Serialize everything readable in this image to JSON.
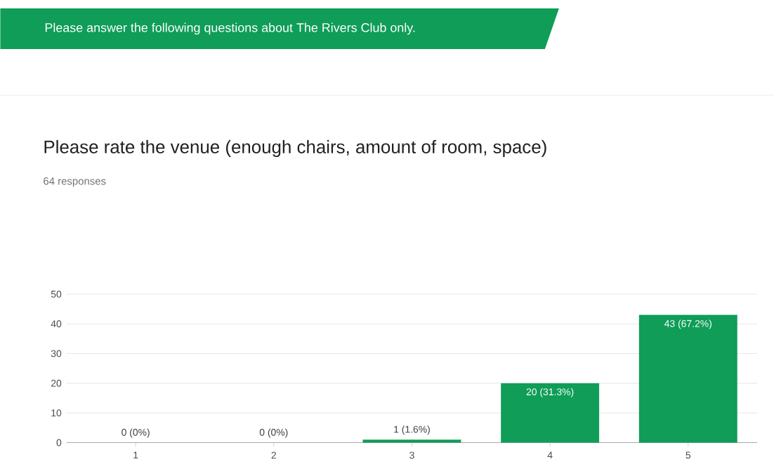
{
  "chart_data": {
    "type": "bar",
    "title": "Please rate the venue (enough chairs, amount of room, space)",
    "subtitle": "64 responses",
    "annotations": [
      "Please answer the following questions about The Rivers Club only."
    ],
    "categories": [
      "1",
      "2",
      "3",
      "4",
      "5"
    ],
    "values": [
      0,
      0,
      1,
      20,
      43
    ],
    "color": "#0f9d58",
    "value_labels": [
      "0 (0%)",
      "0 (0%)",
      "1 (1.6%)",
      "20 (31.3%)",
      "43 (67.2%)"
    ],
    "ylim": [
      0,
      50
    ],
    "yticks": [
      0,
      10,
      20,
      30,
      40,
      50
    ],
    "grid": "y"
  }
}
